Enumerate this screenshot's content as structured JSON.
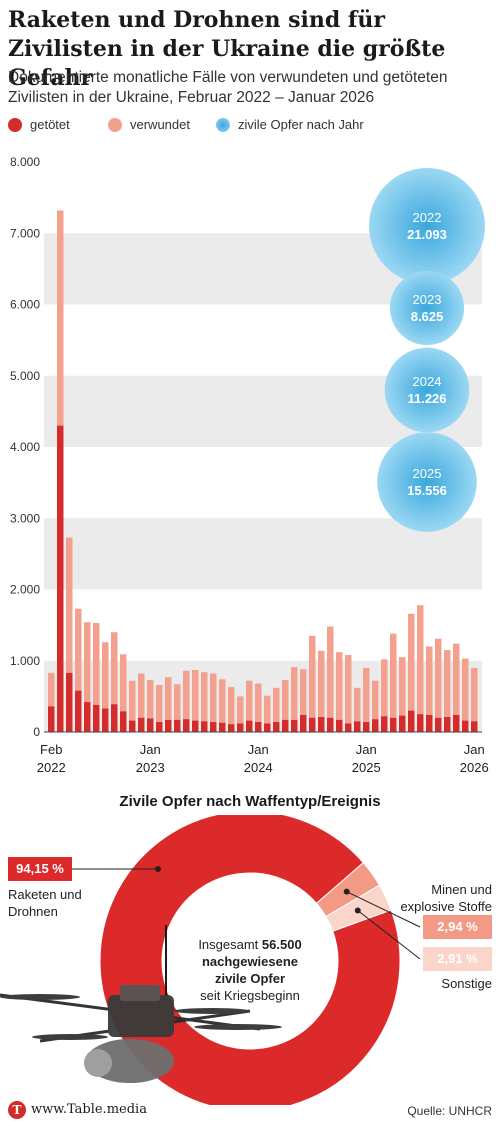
{
  "header": {
    "title": "Raketen und Drohnen sind für Zivilisten in der Ukraine die größte Gefahr",
    "subtitle": "Dokumentierte monatliche Fälle von verwundeten und getöteten Zivilisten in der Ukraine, Februar 2022 – Januar 2026"
  },
  "legend": {
    "killed": "getötet",
    "wounded": "verwundet",
    "yearly": "zivile Opfer nach Jahr"
  },
  "colors": {
    "killed": "#d42b2b",
    "wounded": "#f3a08f",
    "band": "#ebebeb",
    "bubble_outer": "#9bd8f3",
    "bubble_inner": "#3aa7dd",
    "donut_main": "#dc2a2a",
    "donut_mines": "#f39a87",
    "donut_other": "#fbd5ca"
  },
  "chart_data": [
    {
      "type": "bar",
      "stacked": true,
      "ylim": [
        0,
        8000
      ],
      "yticks": [
        "0",
        "1.000",
        "2.000",
        "3.000",
        "4.000",
        "5.000",
        "6.000",
        "7.000",
        "8.000"
      ],
      "xtick_labels": [
        {
          "index": 0,
          "label": "Feb",
          "label2": "2022"
        },
        {
          "index": 11,
          "label": "Jan",
          "label2": "2023"
        },
        {
          "index": 23,
          "label": "Jan",
          "label2": "2024"
        },
        {
          "index": 35,
          "label": "Jan",
          "label2": "2025"
        },
        {
          "index": 47,
          "label": "Jan",
          "label2": "2026"
        }
      ],
      "series": [
        {
          "name": "getötet",
          "values": [
            360,
            4300,
            830,
            580,
            420,
            380,
            330,
            390,
            290,
            160,
            200,
            190,
            140,
            170,
            170,
            180,
            160,
            150,
            140,
            130,
            110,
            120,
            160,
            140,
            120,
            140,
            170,
            170,
            240,
            200,
            210,
            200,
            170,
            120,
            150,
            140,
            180,
            220,
            200,
            230,
            300,
            250,
            240,
            200,
            210,
            240,
            160,
            150
          ]
        },
        {
          "name": "verwundet",
          "values": [
            470,
            3020,
            1900,
            1150,
            1120,
            1150,
            930,
            1010,
            800,
            560,
            620,
            540,
            520,
            600,
            500,
            680,
            710,
            690,
            680,
            610,
            520,
            380,
            560,
            540,
            390,
            480,
            560,
            740,
            640,
            1150,
            930,
            1280,
            950,
            960,
            470,
            760,
            540,
            800,
            1180,
            820,
            1360,
            1530,
            960,
            1110,
            940,
            1000,
            870,
            750
          ]
        }
      ]
    },
    {
      "type": "bubble",
      "title": "zivile Opfer nach Jahr",
      "points": [
        {
          "label": "2022",
          "value": 21093,
          "value_label": "21.093"
        },
        {
          "label": "2023",
          "value": 8625,
          "value_label": "8.625"
        },
        {
          "label": "2024",
          "value": 11226,
          "value_label": "11.226"
        },
        {
          "label": "2025",
          "value": 15556,
          "value_label": "15.556"
        }
      ]
    },
    {
      "type": "pie",
      "donut": true,
      "title": "Zivile Opfer nach Waffentyp/Ereignis",
      "slices": [
        {
          "name": "Raketen und Drohnen",
          "value": 94.15,
          "value_label": "94,15 %"
        },
        {
          "name": "Minen und explosive Stoffe",
          "value": 2.94,
          "value_label": "2,94 %"
        },
        {
          "name": "Sonstige",
          "value": 2.91,
          "value_label": "2,91 %"
        }
      ]
    }
  ],
  "donut": {
    "center_line1": "Insgesamt",
    "center_value": "56.500",
    "center_line2": "nachgewiesene",
    "center_line3": "zivile Opfer",
    "center_line4": "seit Kriegsbeginn",
    "label_main_line1": "Raketen und",
    "label_main_line2": "Drohnen",
    "label_mines_line1": "Minen und",
    "label_mines_line2": "explosive Stoffe",
    "label_other": "Sonstige"
  },
  "footer": {
    "logo_letter": "T",
    "url": "www.Table.media",
    "source": "Quelle: UNHCR"
  }
}
